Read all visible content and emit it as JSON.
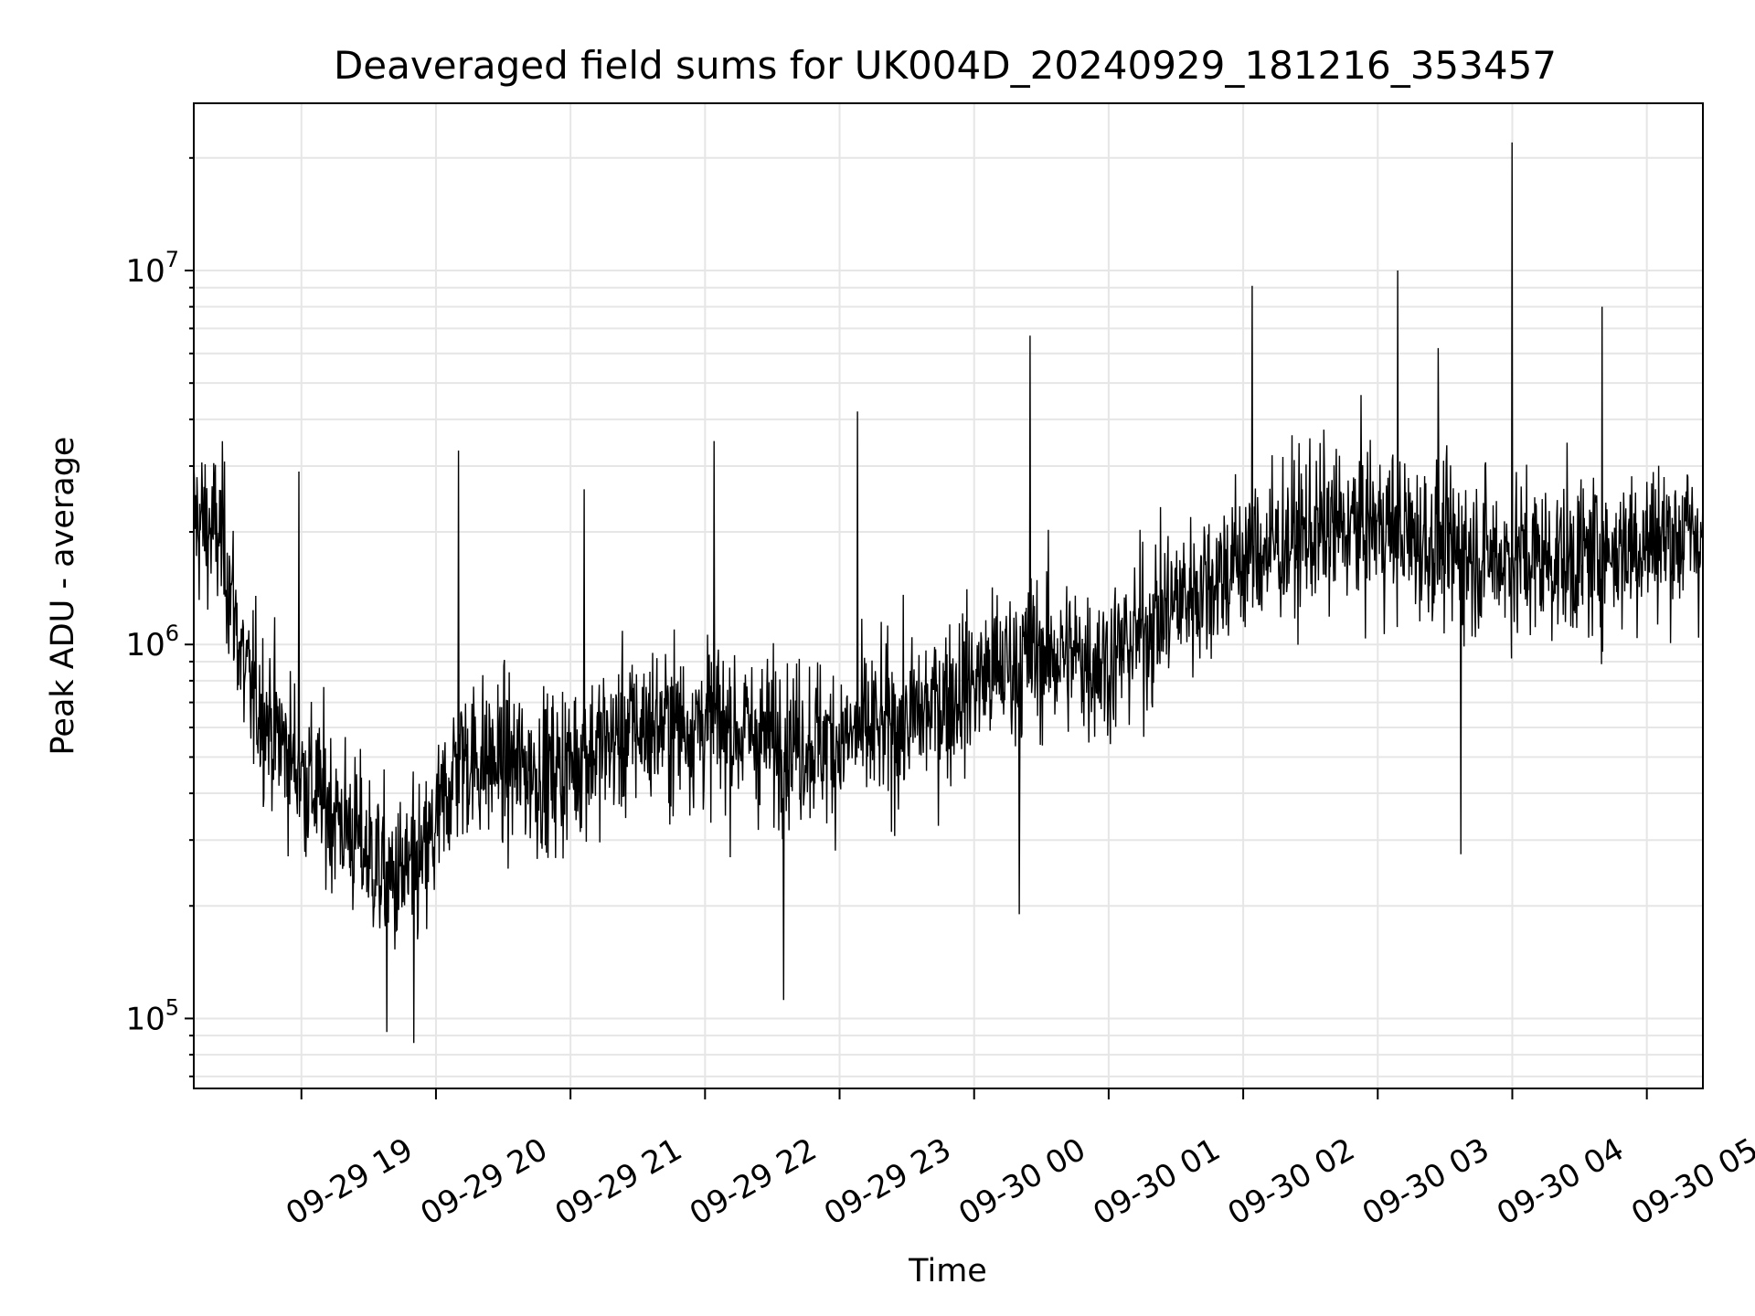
{
  "chart_data": {
    "type": "line",
    "title": "Deaveraged field sums for UK004D_20240929_181216_353457",
    "xlabel": "Time",
    "ylabel": "Peak ADU - average",
    "x_range": [
      "2024-09-29 18:12",
      "2024-09-30 05:25"
    ],
    "x_ticks": [
      {
        "t": "2024-09-29 19:00",
        "label": "09-29 19"
      },
      {
        "t": "2024-09-29 20:00",
        "label": "09-29 20"
      },
      {
        "t": "2024-09-29 21:00",
        "label": "09-29 21"
      },
      {
        "t": "2024-09-29 22:00",
        "label": "09-29 22"
      },
      {
        "t": "2024-09-29 23:00",
        "label": "09-29 23"
      },
      {
        "t": "2024-09-30 00:00",
        "label": "09-30 00"
      },
      {
        "t": "2024-09-30 01:00",
        "label": "09-30 01"
      },
      {
        "t": "2024-09-30 02:00",
        "label": "09-30 02"
      },
      {
        "t": "2024-09-30 03:00",
        "label": "09-30 03"
      },
      {
        "t": "2024-09-30 04:00",
        "label": "09-30 04"
      },
      {
        "t": "2024-09-30 05:00",
        "label": "09-30 05"
      }
    ],
    "y_scale": "log",
    "ylim": [
      65000,
      28000000
    ],
    "y_ticks": [
      {
        "value": 100000,
        "base": "10",
        "exp": "5"
      },
      {
        "value": 1000000,
        "base": "10",
        "exp": "6"
      },
      {
        "value": 10000000,
        "base": "10",
        "exp": "7"
      }
    ],
    "grid": true,
    "line_color": "#000000",
    "grid_color": "#e6e6e6",
    "series": [
      {
        "trend": [
          {
            "t": "2024-09-29 18:12",
            "y": 2200000
          },
          {
            "t": "2024-09-29 18:25",
            "y": 1900000
          },
          {
            "t": "2024-09-29 18:35",
            "y": 800000
          },
          {
            "t": "2024-09-29 19:00",
            "y": 450000
          },
          {
            "t": "2024-09-29 19:20",
            "y": 330000
          },
          {
            "t": "2024-09-29 19:40",
            "y": 230000
          },
          {
            "t": "2024-09-29 19:55",
            "y": 260000
          },
          {
            "t": "2024-09-29 20:10",
            "y": 500000
          },
          {
            "t": "2024-09-29 20:30",
            "y": 480000
          },
          {
            "t": "2024-09-29 20:50",
            "y": 450000
          },
          {
            "t": "2024-09-29 21:10",
            "y": 520000
          },
          {
            "t": "2024-09-29 21:30",
            "y": 600000
          },
          {
            "t": "2024-09-29 22:00",
            "y": 620000
          },
          {
            "t": "2024-09-29 22:30",
            "y": 560000
          },
          {
            "t": "2024-09-29 23:00",
            "y": 550000
          },
          {
            "t": "2024-09-29 23:30",
            "y": 620000
          },
          {
            "t": "2024-09-30 00:00",
            "y": 800000
          },
          {
            "t": "2024-09-30 00:30",
            "y": 950000
          },
          {
            "t": "2024-09-30 01:00",
            "y": 900000
          },
          {
            "t": "2024-09-30 01:30",
            "y": 1300000
          },
          {
            "t": "2024-09-30 02:00",
            "y": 1700000
          },
          {
            "t": "2024-09-30 02:30",
            "y": 2000000
          },
          {
            "t": "2024-09-30 03:00",
            "y": 2100000
          },
          {
            "t": "2024-09-30 03:30",
            "y": 1800000
          },
          {
            "t": "2024-09-30 04:00",
            "y": 1700000
          },
          {
            "t": "2024-09-30 04:30",
            "y": 1700000
          },
          {
            "t": "2024-09-30 05:00",
            "y": 1900000
          },
          {
            "t": "2024-09-30 05:25",
            "y": 2000000
          }
        ],
        "spikes": [
          {
            "t": "2024-09-29 18:59",
            "y": 2900000
          },
          {
            "t": "2024-09-29 20:10",
            "y": 3300000
          },
          {
            "t": "2024-09-29 21:06",
            "y": 2600000
          },
          {
            "t": "2024-09-29 22:04",
            "y": 3500000
          },
          {
            "t": "2024-09-29 23:08",
            "y": 4200000
          },
          {
            "t": "2024-09-30 00:25",
            "y": 6700000
          },
          {
            "t": "2024-09-30 02:04",
            "y": 9100000
          },
          {
            "t": "2024-09-30 03:09",
            "y": 10000000
          },
          {
            "t": "2024-09-30 03:27",
            "y": 6200000
          },
          {
            "t": "2024-09-30 04:00",
            "y": 22000000
          },
          {
            "t": "2024-09-30 04:40",
            "y": 8000000
          },
          {
            "t": "2024-09-29 19:50",
            "y": 86000
          },
          {
            "t": "2024-09-29 19:38",
            "y": 92000
          },
          {
            "t": "2024-09-29 22:35",
            "y": 112000
          },
          {
            "t": "2024-09-30 03:37",
            "y": 275000
          },
          {
            "t": "2024-09-30 00:20",
            "y": 190000
          }
        ]
      }
    ]
  }
}
